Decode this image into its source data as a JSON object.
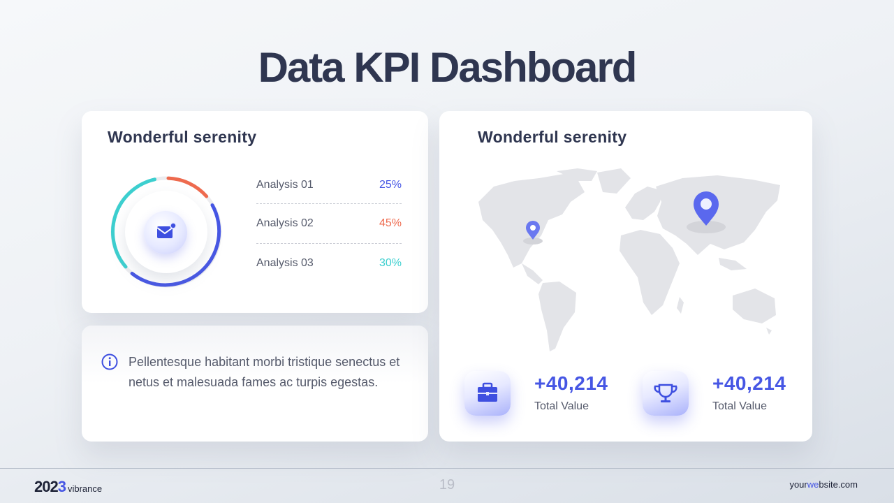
{
  "slide": {
    "title": "Data KPI Dashboard",
    "page_number": "19"
  },
  "analysis_card": {
    "title": "Wonderful serenity",
    "icon": "mail-icon",
    "items": [
      {
        "label": "Analysis 01",
        "value": "25%",
        "color": "#4656e4"
      },
      {
        "label": "Analysis 02",
        "value": "45%",
        "color": "#ee6a4e"
      },
      {
        "label": "Analysis 03",
        "value": "30%",
        "color": "#3ccfcf"
      }
    ]
  },
  "info_card": {
    "icon": "info-icon",
    "text": "Pellentesque habitant morbi tristique senectus et netus et malesuada fames ac turpis egestas."
  },
  "map_card": {
    "title": "Wonderful serenity",
    "map": "world-map",
    "pins": [
      "location-pin-icon",
      "location-pin-icon"
    ],
    "kpis": [
      {
        "icon": "briefcase-icon",
        "value": "+40,214",
        "label": "Total Value"
      },
      {
        "icon": "trophy-icon",
        "value": "+40,214",
        "label": "Total Value"
      }
    ]
  },
  "footer": {
    "brand_year_main": "202",
    "brand_year_accent": "3",
    "brand_name": "vibrance",
    "website_pre": "your",
    "website_accent": "we",
    "website_post": "bsite.com"
  },
  "colors": {
    "accent": "#4656e4",
    "coral": "#ee6a4e",
    "teal": "#3ccfcf",
    "title": "#2f3650"
  }
}
